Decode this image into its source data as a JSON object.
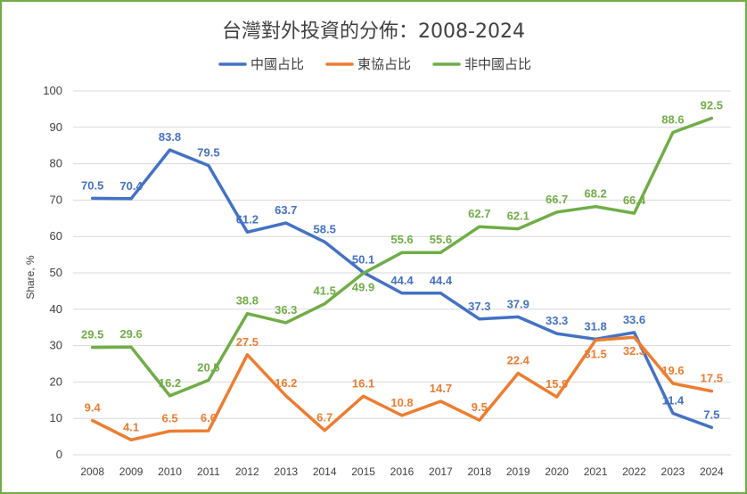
{
  "chart_data": {
    "type": "line",
    "title": "台灣對外投資的分佈：2008-2024",
    "xlabel": "",
    "ylabel": "Share, %",
    "ylim": [
      0,
      100
    ],
    "yticks": [
      0,
      10,
      20,
      30,
      40,
      50,
      60,
      70,
      80,
      90,
      100
    ],
    "grid": true,
    "legend_position": "top",
    "x": [
      "2008",
      "2009",
      "2010",
      "2011",
      "2012",
      "2013",
      "2014",
      "2015",
      "2016",
      "2017",
      "2018",
      "2019",
      "2020",
      "2021",
      "2022",
      "2023",
      "2024"
    ],
    "series": [
      {
        "name": "中國占比",
        "color": "#4472c4",
        "values": [
          70.5,
          70.4,
          83.8,
          79.5,
          61.2,
          63.7,
          58.5,
          50.1,
          44.4,
          44.4,
          37.3,
          37.9,
          33.3,
          31.8,
          33.6,
          11.4,
          7.5
        ]
      },
      {
        "name": "東協占比",
        "color": "#ed7d31",
        "values": [
          9.4,
          4.1,
          6.5,
          6.6,
          27.5,
          16.2,
          6.7,
          16.1,
          10.8,
          14.7,
          9.5,
          22.4,
          15.9,
          31.5,
          32.3,
          19.6,
          17.5
        ]
      },
      {
        "name": "非中國占比",
        "color": "#70ad47",
        "values": [
          29.5,
          29.6,
          16.2,
          20.5,
          38.8,
          36.3,
          41.5,
          49.9,
          55.6,
          55.6,
          62.7,
          62.1,
          66.7,
          68.2,
          66.4,
          88.6,
          92.5
        ]
      }
    ]
  }
}
